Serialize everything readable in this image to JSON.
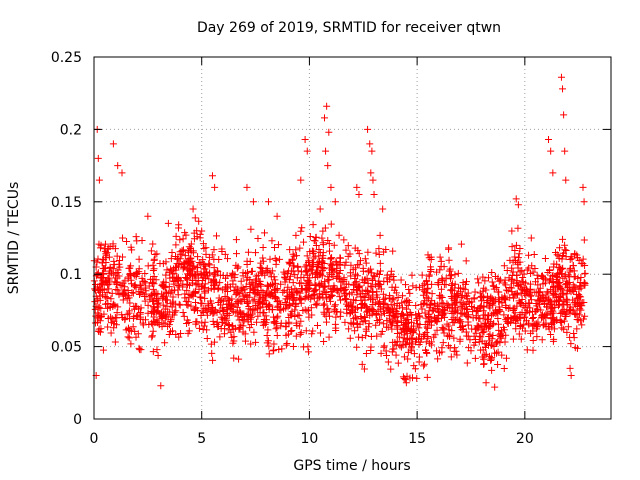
{
  "chart_data": {
    "type": "scatter",
    "title": "Day 269 of 2019, SRMTID for receiver qtwn",
    "xlabel": "GPS time / hours",
    "ylabel": "SRMTID / TECUs",
    "xlim": [
      0,
      24
    ],
    "ylim": [
      0,
      0.25
    ],
    "xticks": [
      0,
      5,
      10,
      15,
      20
    ],
    "xtick_labels": [
      "0",
      "5",
      "10",
      "15",
      "20"
    ],
    "yticks": [
      0,
      0.05,
      0.1,
      0.15,
      0.2,
      0.25
    ],
    "ytick_labels": [
      "0",
      "0.05",
      "0.1",
      "0.15",
      "0.2",
      "0.25"
    ],
    "grid": true,
    "marker": "+",
    "marker_color": "#ff0000",
    "time_range": [
      0,
      22.8
    ],
    "typical_range": [
      0.03,
      0.17
    ],
    "profile": [
      [
        0.0,
        0.085
      ],
      [
        0.5,
        0.095
      ],
      [
        1.0,
        0.09
      ],
      [
        1.5,
        0.085
      ],
      [
        2.0,
        0.08
      ],
      [
        2.5,
        0.085
      ],
      [
        3.0,
        0.08
      ],
      [
        3.5,
        0.09
      ],
      [
        4.0,
        0.095
      ],
      [
        4.5,
        0.1
      ],
      [
        5.0,
        0.095
      ],
      [
        5.5,
        0.085
      ],
      [
        6.0,
        0.08
      ],
      [
        6.5,
        0.08
      ],
      [
        7.0,
        0.085
      ],
      [
        7.5,
        0.09
      ],
      [
        8.0,
        0.085
      ],
      [
        8.5,
        0.085
      ],
      [
        9.0,
        0.085
      ],
      [
        9.5,
        0.09
      ],
      [
        10.0,
        0.095
      ],
      [
        10.5,
        0.1
      ],
      [
        11.0,
        0.095
      ],
      [
        11.5,
        0.09
      ],
      [
        12.0,
        0.085
      ],
      [
        12.5,
        0.08
      ],
      [
        13.0,
        0.085
      ],
      [
        13.5,
        0.085
      ],
      [
        14.0,
        0.075
      ],
      [
        14.5,
        0.06
      ],
      [
        15.0,
        0.065
      ],
      [
        15.5,
        0.075
      ],
      [
        16.0,
        0.08
      ],
      [
        16.5,
        0.08
      ],
      [
        17.0,
        0.08
      ],
      [
        17.5,
        0.075
      ],
      [
        18.0,
        0.07
      ],
      [
        18.5,
        0.065
      ],
      [
        19.0,
        0.075
      ],
      [
        19.5,
        0.09
      ],
      [
        20.0,
        0.085
      ],
      [
        20.5,
        0.08
      ],
      [
        21.0,
        0.075
      ],
      [
        21.5,
        0.095
      ],
      [
        22.0,
        0.085
      ],
      [
        22.5,
        0.085
      ],
      [
        22.8,
        0.09
      ]
    ],
    "outliers": [
      [
        0.1,
        0.03
      ],
      [
        0.15,
        0.2
      ],
      [
        0.2,
        0.18
      ],
      [
        0.25,
        0.165
      ],
      [
        0.9,
        0.19
      ],
      [
        1.1,
        0.175
      ],
      [
        1.3,
        0.17
      ],
      [
        2.5,
        0.14
      ],
      [
        3.1,
        0.023
      ],
      [
        4.6,
        0.145
      ],
      [
        5.5,
        0.168
      ],
      [
        5.6,
        0.16
      ],
      [
        7.1,
        0.16
      ],
      [
        7.4,
        0.15
      ],
      [
        8.1,
        0.15
      ],
      [
        8.5,
        0.14
      ],
      [
        9.6,
        0.165
      ],
      [
        9.8,
        0.193
      ],
      [
        9.9,
        0.185
      ],
      [
        10.5,
        0.145
      ],
      [
        10.7,
        0.208
      ],
      [
        10.8,
        0.216
      ],
      [
        10.9,
        0.198
      ],
      [
        10.75,
        0.185
      ],
      [
        10.85,
        0.175
      ],
      [
        11.0,
        0.16
      ],
      [
        11.2,
        0.15
      ],
      [
        12.2,
        0.16
      ],
      [
        12.3,
        0.155
      ],
      [
        12.7,
        0.2
      ],
      [
        12.8,
        0.19
      ],
      [
        12.9,
        0.185
      ],
      [
        12.85,
        0.17
      ],
      [
        12.95,
        0.165
      ],
      [
        13.0,
        0.155
      ],
      [
        13.4,
        0.145
      ],
      [
        14.4,
        0.028
      ],
      [
        14.5,
        0.025
      ],
      [
        18.2,
        0.025
      ],
      [
        18.6,
        0.022
      ],
      [
        19.6,
        0.152
      ],
      [
        19.7,
        0.148
      ],
      [
        20.3,
        0.125
      ],
      [
        21.1,
        0.193
      ],
      [
        21.2,
        0.185
      ],
      [
        21.3,
        0.17
      ],
      [
        21.7,
        0.236
      ],
      [
        21.75,
        0.228
      ],
      [
        21.8,
        0.21
      ],
      [
        21.85,
        0.185
      ],
      [
        21.9,
        0.165
      ],
      [
        22.1,
        0.035
      ],
      [
        22.15,
        0.03
      ],
      [
        22.7,
        0.16
      ],
      [
        22.75,
        0.15
      ]
    ]
  }
}
